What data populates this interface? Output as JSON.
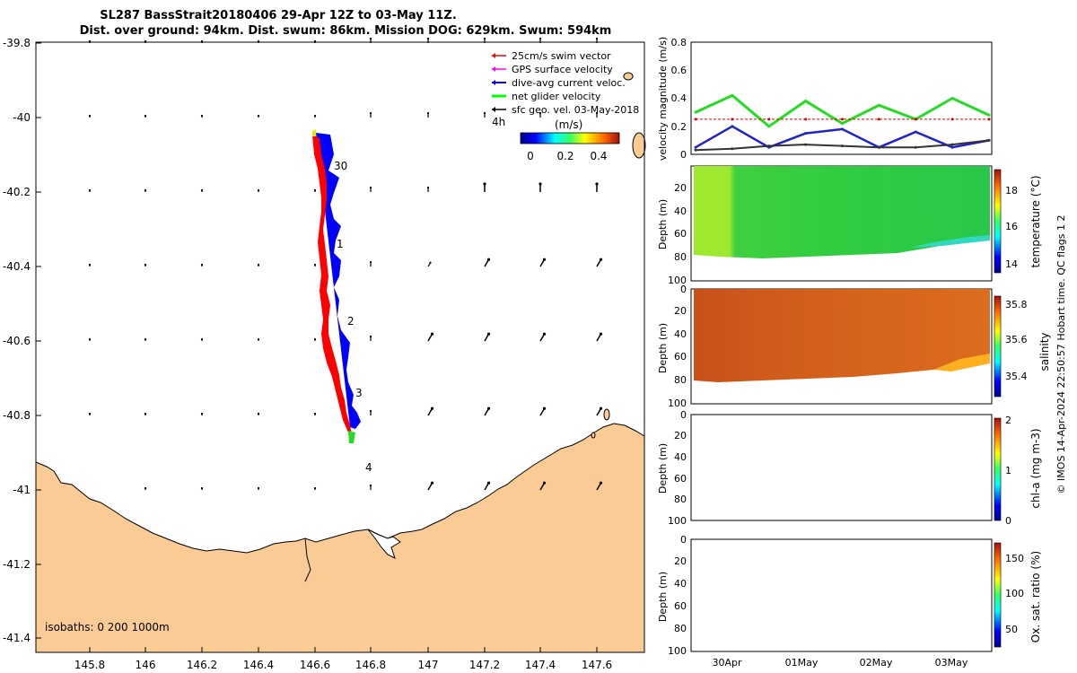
{
  "title": {
    "line1": "SL287 BassStrait20180406 29-Apr 12Z to 03-May 11Z.",
    "line2": "Dist. over ground: 94km. Dist. swum: 86km. Mission DOG: 629km. Swum: 594km"
  },
  "map": {
    "xticks": [
      "145.8",
      "146",
      "146.2",
      "146.4",
      "146.6",
      "146.8",
      "147",
      "147.2",
      "147.4",
      "147.6"
    ],
    "yticks": [
      "-39.8",
      "-40",
      "-40.2",
      "-40.4",
      "-40.6",
      "-40.8",
      "-41",
      "-41.2",
      "-41.4"
    ],
    "legend": [
      {
        "label": "25cm/s swim vector",
        "color": "#ff0000"
      },
      {
        "label": "GPS surface velocity",
        "color": "#ff00ff"
      },
      {
        "label": "dive-avg current veloc.",
        "color": "#0000ff"
      },
      {
        "label": "net glider velocity",
        "color": "#00ff00"
      },
      {
        "label": "sfc geo. vel. 03-May-2018",
        "color": "#000000"
      }
    ],
    "colorbar": {
      "unit": "(m/s)",
      "label_4h": "4h",
      "ticks": [
        "0",
        "0.2",
        "0.4"
      ]
    },
    "track_labels": [
      "30",
      "1",
      "2",
      "3",
      "4"
    ],
    "isobaths": "isobaths: 0   200  1000m",
    "colors": {
      "land": "#fbcb96",
      "track_red": "#ff0000",
      "track_blue": "#0000ff"
    }
  },
  "panels": {
    "date_ticks": [
      "30Apr",
      "01May",
      "02May",
      "03May"
    ],
    "velocity": {
      "ylabel": "velocity magnitude (m/s)",
      "yticks": [
        "0",
        "0.2",
        "0.4",
        "0.6",
        "0.8"
      ]
    },
    "depth_label": "Depth (m)",
    "depth_ticks": [
      "0",
      "20",
      "40",
      "60",
      "80",
      "100"
    ],
    "temperature": {
      "label": "temperature (°C)",
      "ticks": [
        "14",
        "16",
        "18"
      ]
    },
    "salinity": {
      "label": "salinity",
      "ticks": [
        "35.4",
        "35.6",
        "35.8"
      ]
    },
    "chla": {
      "label": "chl-a (mg m-3)",
      "ticks": [
        "0",
        "1",
        "2"
      ]
    },
    "oxygen": {
      "label": "Ox. sat. ratio (%)",
      "ticks": [
        "50",
        "100",
        "150"
      ]
    }
  },
  "footer": "© IMOS 14-Apr-2024 22:50:57 Hobart time. QC flags 1  2",
  "chart_data": [
    {
      "type": "line",
      "title": "",
      "xlabel": "",
      "ylabel": "velocity magnitude (m/s)",
      "ylim": [
        0,
        0.8
      ],
      "x": [
        "29-Apr 12Z",
        "30-Apr 00Z",
        "30-Apr 12Z",
        "01-May 00Z",
        "01-May 12Z",
        "02-May 00Z",
        "02-May 12Z",
        "03-May 00Z",
        "03-May 11Z"
      ],
      "series": [
        {
          "name": "net glider velocity",
          "color": "#22dd22",
          "values": [
            0.3,
            0.42,
            0.2,
            0.38,
            0.22,
            0.35,
            0.25,
            0.4,
            0.28
          ]
        },
        {
          "name": "dive-avg current veloc.",
          "color": "#2222cc",
          "values": [
            0.05,
            0.2,
            0.05,
            0.15,
            0.18,
            0.05,
            0.16,
            0.05,
            0.1
          ]
        },
        {
          "name": "25cm/s swim vector",
          "color": "#dd0000",
          "values": [
            0.25,
            0.25,
            0.25,
            0.25,
            0.25,
            0.25,
            0.25,
            0.25,
            0.25
          ]
        },
        {
          "name": "sfc geo. vel.",
          "color": "#333333",
          "values": [
            0.03,
            0.04,
            0.06,
            0.07,
            0.06,
            0.05,
            0.05,
            0.07,
            0.1
          ]
        }
      ]
    }
  ]
}
